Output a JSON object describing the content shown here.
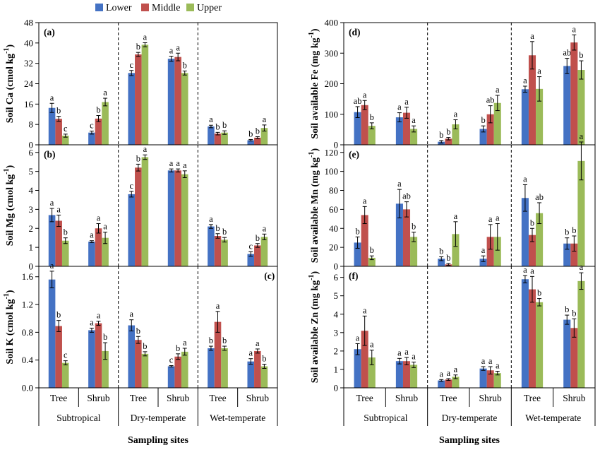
{
  "legend": [
    {
      "name": "Lower",
      "color": "#4472C4"
    },
    {
      "name": "Middle",
      "color": "#C0504D"
    },
    {
      "name": "Upper",
      "color": "#9BBB59"
    }
  ],
  "x_axis_title": "Sampling sites",
  "sites": [
    "Subtropical",
    "Dry-temperate",
    "Wet-temperate"
  ],
  "vegetation": [
    "Tree",
    "Shrub",
    "Tree",
    "Shrub",
    "Tree",
    "Shrub"
  ],
  "chart_data": [
    {
      "type": "bar",
      "panel": "(a)",
      "ylabel": "Soil Ca (cmol kg-1)",
      "ylabel_main": "Soil Ca (cmol kg",
      "ylabel_sup": "-1",
      "ylabel_end": ")",
      "ylim": [
        0,
        48
      ],
      "yticks": [
        0,
        8,
        16,
        24,
        32,
        40,
        48
      ],
      "tick_decimals": 0,
      "categories": [
        "Subtropical Tree",
        "Subtropical Shrub",
        "Dry-temperate Tree",
        "Dry-temperate Shrub",
        "Wet-temperate Tree",
        "Wet-temperate Shrub"
      ],
      "series": [
        {
          "name": "Lower",
          "values": [
            14.5,
            4.8,
            28.2,
            33.8,
            7.2,
            1.8
          ],
          "errors": [
            1.8,
            0.6,
            1.0,
            1.0,
            0.5,
            0.3
          ],
          "letters": [
            "a",
            "c",
            "c",
            "a",
            "a",
            "b"
          ]
        },
        {
          "name": "Middle",
          "values": [
            10.2,
            10.3,
            35.5,
            34.5,
            4.4,
            2.8
          ],
          "errors": [
            1.0,
            1.2,
            0.8,
            1.5,
            0.5,
            0.4
          ],
          "letters": [
            "b",
            "b",
            "b",
            "a",
            "b",
            "b"
          ]
        },
        {
          "name": "Upper",
          "values": [
            3.6,
            16.8,
            39.3,
            28.2,
            4.8,
            6.6
          ],
          "errors": [
            0.6,
            1.5,
            0.8,
            0.8,
            0.7,
            1.2
          ],
          "letters": [
            "c",
            "a",
            "a",
            "b",
            "b",
            "a"
          ]
        }
      ]
    },
    {
      "type": "bar",
      "panel": "(b)",
      "ylabel": "Soil Mg (cmol kg-1)",
      "ylabel_main": "Soil Mg (cmol kg",
      "ylabel_sup": "-1",
      "ylabel_end": ")",
      "ylim": [
        0,
        6.4
      ],
      "yticks": [
        0,
        1,
        2,
        3,
        4,
        5,
        6
      ],
      "tick_decimals": 0,
      "categories": [
        "Subtropical Tree",
        "Subtropical Shrub",
        "Dry-temperate Tree",
        "Dry-temperate Shrub",
        "Wet-temperate Tree",
        "Wet-temperate Shrub"
      ],
      "series": [
        {
          "name": "Lower",
          "values": [
            2.7,
            1.3,
            3.8,
            5.05,
            2.1,
            0.65
          ],
          "errors": [
            0.35,
            0.05,
            0.15,
            0.08,
            0.1,
            0.12
          ],
          "letters": [
            "a",
            "a",
            "c",
            "a",
            "a",
            "c"
          ]
        },
        {
          "name": "Middle",
          "values": [
            2.4,
            2.0,
            5.2,
            5.05,
            1.6,
            1.1
          ],
          "errors": [
            0.3,
            0.25,
            0.18,
            0.08,
            0.12,
            0.1
          ],
          "letters": [
            "a",
            "a",
            "b",
            "a",
            "b",
            "b"
          ]
        },
        {
          "name": "Upper",
          "values": [
            1.35,
            1.5,
            5.75,
            4.85,
            1.4,
            1.55
          ],
          "errors": [
            0.15,
            0.3,
            0.12,
            0.18,
            0.12,
            0.15
          ],
          "letters": [
            "b",
            "a",
            "a",
            "a",
            "b",
            "a"
          ]
        }
      ]
    },
    {
      "type": "bar",
      "panel": "(c)",
      "ylabel": "Soil K (cmol kg-1)",
      "ylabel_main": "Soil K (cmol kg",
      "ylabel_sup": "-1",
      "ylabel_end": ")",
      "ylim": [
        0,
        1.75
      ],
      "yticks": [
        0,
        0.4,
        0.8,
        1.2,
        1.6
      ],
      "tick_decimals": 1,
      "categories": [
        "Subtropical Tree",
        "Subtropical Shrub",
        "Dry-temperate Tree",
        "Dry-temperate Shrub",
        "Wet-temperate Tree",
        "Wet-temperate Shrub"
      ],
      "series": [
        {
          "name": "Lower",
          "values": [
            1.56,
            0.83,
            0.9,
            0.31,
            0.57,
            0.38
          ],
          "errors": [
            0.12,
            0.03,
            0.08,
            0.01,
            0.03,
            0.04
          ],
          "letters": [
            "a",
            "a",
            "a",
            "c",
            "b",
            "a"
          ]
        },
        {
          "name": "Middle",
          "values": [
            0.89,
            0.93,
            0.69,
            0.45,
            0.95,
            0.53
          ],
          "errors": [
            0.08,
            0.03,
            0.05,
            0.04,
            0.15,
            0.03
          ],
          "letters": [
            "b",
            "a",
            "b",
            "b",
            "a",
            "a"
          ]
        },
        {
          "name": "Upper",
          "values": [
            0.36,
            0.53,
            0.49,
            0.52,
            0.57,
            0.31
          ],
          "errors": [
            0.03,
            0.12,
            0.03,
            0.05,
            0.03,
            0.03
          ],
          "letters": [
            "c",
            "b",
            "b",
            "a",
            "b",
            "b"
          ]
        }
      ]
    },
    {
      "type": "bar",
      "panel": "(d)",
      "ylabel": "Soil available Fe (mg kg-1)",
      "ylabel_main": "Soil available Fe (mg kg",
      "ylabel_sup": "-1",
      "ylabel_end": ")",
      "ylim": [
        0,
        400
      ],
      "yticks": [
        0,
        100,
        200,
        300,
        400
      ],
      "tick_decimals": 0,
      "categories": [
        "Subtropical Tree",
        "Subtropical Shrub",
        "Dry-temperate Tree",
        "Dry-temperate Shrub",
        "Wet-temperate Tree",
        "Wet-temperate Shrub"
      ],
      "series": [
        {
          "name": "Lower",
          "values": [
            107,
            90,
            10,
            52,
            182,
            258
          ],
          "errors": [
            18,
            15,
            4,
            10,
            10,
            25
          ],
          "letters": [
            "ab",
            "a",
            "b",
            "b",
            "a",
            "ab"
          ]
        },
        {
          "name": "Middle",
          "values": [
            130,
            105,
            20,
            100,
            293,
            335
          ],
          "errors": [
            15,
            18,
            4,
            28,
            45,
            25
          ],
          "letters": [
            "a",
            "a",
            "b",
            "ab",
            "a",
            "a"
          ]
        },
        {
          "name": "Upper",
          "values": [
            62,
            52,
            67,
            137,
            183,
            245
          ],
          "errors": [
            10,
            10,
            15,
            25,
            40,
            30
          ],
          "letters": [
            "b",
            "a",
            "a",
            "a",
            "a",
            "b"
          ]
        }
      ]
    },
    {
      "type": "bar",
      "panel": "(e)",
      "ylabel": "Soil available Mn (mg kg-1)",
      "ylabel_main": "Soil available Mn (mg kg",
      "ylabel_sup": "-1",
      "ylabel_end": ")",
      "ylim": [
        0,
        128
      ],
      "yticks": [
        0,
        20,
        40,
        60,
        80,
        100,
        120
      ],
      "tick_decimals": 0,
      "categories": [
        "Subtropical Tree",
        "Subtropical Shrub",
        "Dry-temperate Tree",
        "Dry-temperate Shrub",
        "Wet-temperate Tree",
        "Wet-temperate Shrub"
      ],
      "series": [
        {
          "name": "Lower",
          "values": [
            25,
            66,
            8,
            8,
            72,
            24
          ],
          "errors": [
            6,
            15,
            2,
            3,
            14,
            6
          ],
          "letters": [
            "b",
            "a",
            "b",
            "a",
            "a",
            "b"
          ]
        },
        {
          "name": "Middle",
          "values": [
            54,
            60,
            2,
            31,
            33,
            24
          ],
          "errors": [
            9,
            8,
            1,
            13,
            7,
            8
          ],
          "letters": [
            "a",
            "ab",
            "b",
            "a",
            "b",
            "b"
          ]
        },
        {
          "name": "Upper",
          "values": [
            9,
            31,
            34,
            31,
            56,
            111
          ],
          "errors": [
            2,
            5,
            13,
            14,
            11,
            20
          ],
          "letters": [
            "b",
            "b",
            "a",
            "a",
            "ab",
            "a"
          ]
        }
      ]
    },
    {
      "type": "bar",
      "panel": "(f)",
      "ylabel": "Soil available Zn (mg kg-1)",
      "ylabel_main": "Soil available Zn (mg kg",
      "ylabel_sup": "-1",
      "ylabel_end": ")",
      "ylim": [
        0,
        6.6
      ],
      "yticks": [
        0,
        1,
        2,
        3,
        4,
        5,
        6
      ],
      "tick_decimals": 0,
      "categories": [
        "Subtropical Tree",
        "Subtropical Shrub",
        "Dry-temperate Tree",
        "Dry-temperate Shrub",
        "Wet-temperate Tree",
        "Wet-temperate Shrub"
      ],
      "series": [
        {
          "name": "Lower",
          "values": [
            2.1,
            1.45,
            0.4,
            1.05,
            5.9,
            3.7
          ],
          "errors": [
            0.3,
            0.15,
            0.05,
            0.1,
            0.2,
            0.25
          ],
          "letters": [
            "a",
            "a",
            "a",
            "a",
            "a",
            "b"
          ]
        },
        {
          "name": "Middle",
          "values": [
            3.1,
            1.45,
            0.45,
            0.95,
            5.35,
            3.25
          ],
          "errors": [
            0.8,
            0.2,
            0.05,
            0.2,
            0.7,
            0.5
          ],
          "letters": [
            "a",
            "a",
            "a",
            "a",
            "a",
            "b"
          ]
        },
        {
          "name": "Upper",
          "values": [
            1.65,
            1.25,
            0.6,
            0.8,
            4.65,
            5.8
          ],
          "errors": [
            0.4,
            0.15,
            0.1,
            0.1,
            0.2,
            0.45
          ],
          "letters": [
            "a",
            "a",
            "a",
            "a",
            "b",
            "a"
          ]
        }
      ]
    }
  ]
}
